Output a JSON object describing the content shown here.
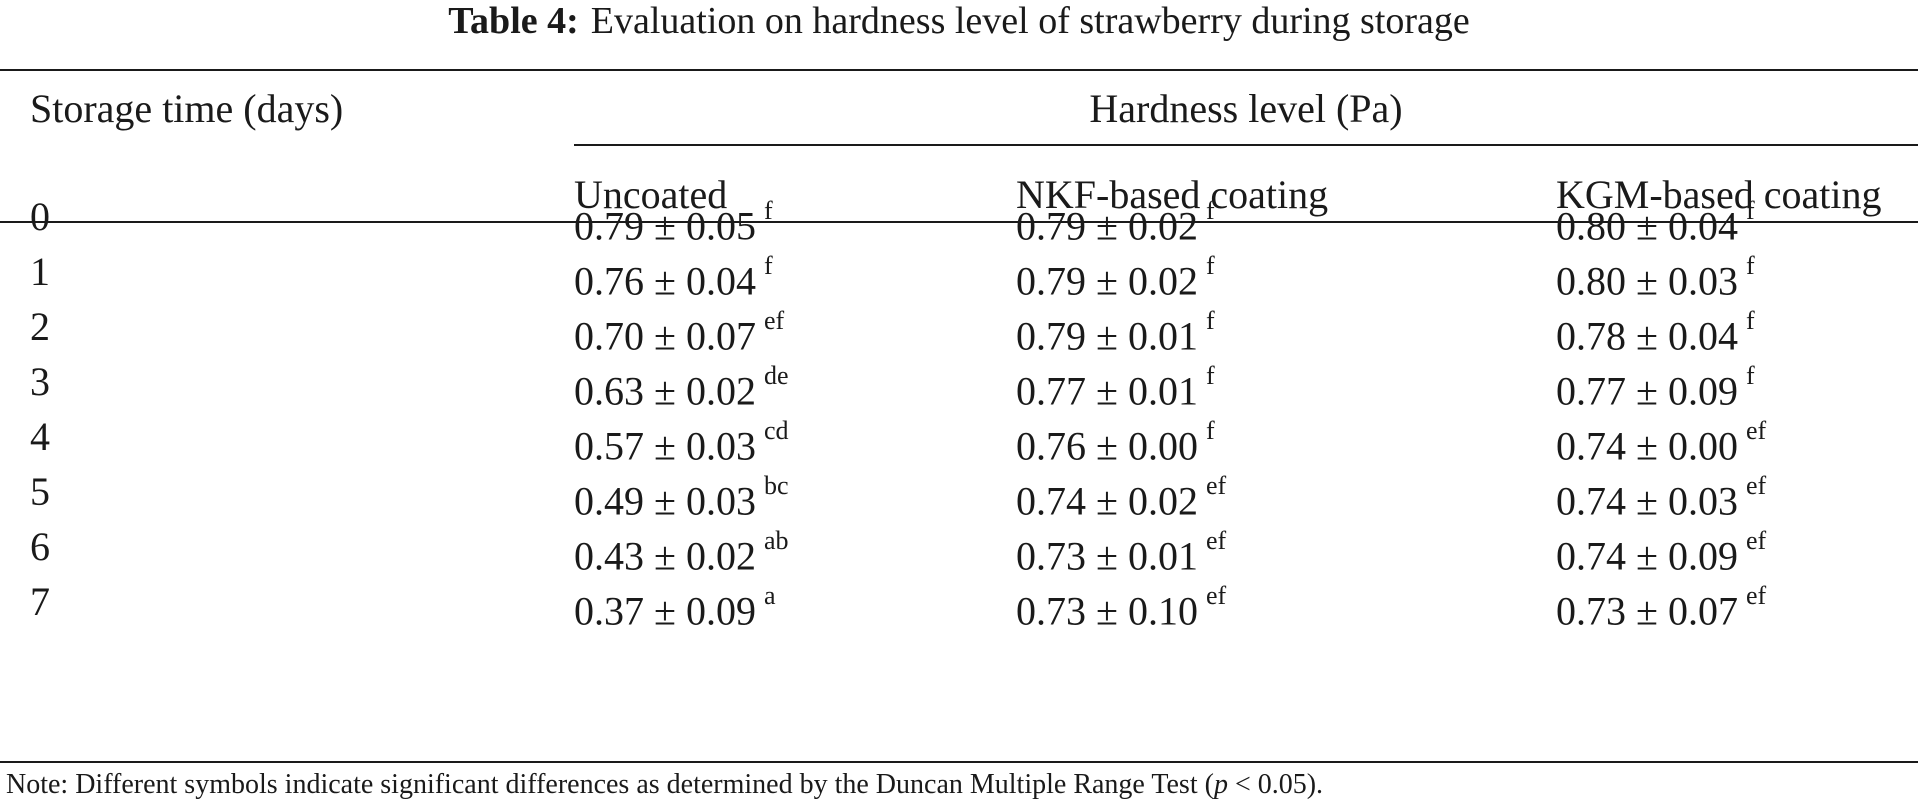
{
  "caption": {
    "label": "Table 4:",
    "title": "Evaluation on hardness level of strawberry during storage"
  },
  "table": {
    "header": {
      "storage": "Storage time (days)",
      "group": "Hardness level (Pa)",
      "columns": [
        "Uncoated",
        "NKF-based coating",
        "KGM-based coating"
      ]
    },
    "rows": [
      {
        "day": "0",
        "cells": [
          {
            "v": "0.79 ± 0.05",
            "s": "f"
          },
          {
            "v": "0.79 ± 0.02",
            "s": "f"
          },
          {
            "v": "0.80 ± 0.04",
            "s": "f"
          }
        ]
      },
      {
        "day": "1",
        "cells": [
          {
            "v": "0.76 ± 0.04",
            "s": "f"
          },
          {
            "v": "0.79 ± 0.02",
            "s": "f"
          },
          {
            "v": "0.80 ± 0.03",
            "s": "f"
          }
        ]
      },
      {
        "day": "2",
        "cells": [
          {
            "v": "0.70 ± 0.07",
            "s": "ef"
          },
          {
            "v": "0.79 ± 0.01",
            "s": "f"
          },
          {
            "v": "0.78 ± 0.04",
            "s": "f"
          }
        ]
      },
      {
        "day": "3",
        "cells": [
          {
            "v": "0.63 ± 0.02",
            "s": "de"
          },
          {
            "v": "0.77 ± 0.01",
            "s": "f"
          },
          {
            "v": "0.77 ± 0.09",
            "s": "f"
          }
        ]
      },
      {
        "day": "4",
        "cells": [
          {
            "v": "0.57 ± 0.03",
            "s": "cd"
          },
          {
            "v": "0.76 ± 0.00",
            "s": "f"
          },
          {
            "v": "0.74 ± 0.00",
            "s": "ef"
          }
        ]
      },
      {
        "day": "5",
        "cells": [
          {
            "v": "0.49 ± 0.03",
            "s": "bc"
          },
          {
            "v": "0.74 ± 0.02",
            "s": "ef"
          },
          {
            "v": "0.74 ± 0.03",
            "s": "ef"
          }
        ]
      },
      {
        "day": "6",
        "cells": [
          {
            "v": "0.43 ± 0.02",
            "s": "ab"
          },
          {
            "v": "0.73 ± 0.01",
            "s": "ef"
          },
          {
            "v": "0.74 ± 0.09",
            "s": "ef"
          }
        ]
      },
      {
        "day": "7",
        "cells": [
          {
            "v": "0.37 ± 0.09",
            "s": "a"
          },
          {
            "v": "0.73 ± 0.10",
            "s": "ef"
          },
          {
            "v": "0.73 ± 0.07",
            "s": "ef"
          }
        ]
      }
    ]
  },
  "note": {
    "prefix": "Note: Different symbols indicate significant differences as determined by the Duncan Multiple Range Test (",
    "p": "p",
    "suffix": " < 0.05)."
  }
}
